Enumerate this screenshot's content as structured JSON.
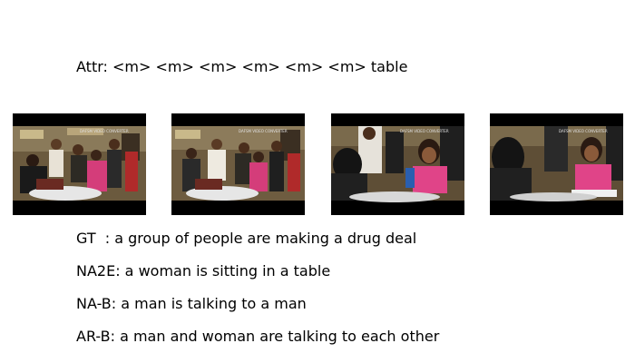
{
  "attr": "Attr: <m> <m> <m> <m> <m> <m> table",
  "captions": {
    "gt": "GT  : a group of people are making a drug deal",
    "na2e": "NA2E: a woman is sitting in a table",
    "nab": "NA-B: a man is talking to a man",
    "arb": "AR-B: a man and woman are talking to each other"
  },
  "frames": [
    {
      "watermark": "DAFSM VIDEO CONVERTER"
    },
    {
      "watermark": "DAFSM VIDEO CONVERTER"
    },
    {
      "watermark": "DAFSM VIDEO CONVERTER"
    },
    {
      "watermark": "DAFSM VIDEO CONVERTER"
    }
  ]
}
